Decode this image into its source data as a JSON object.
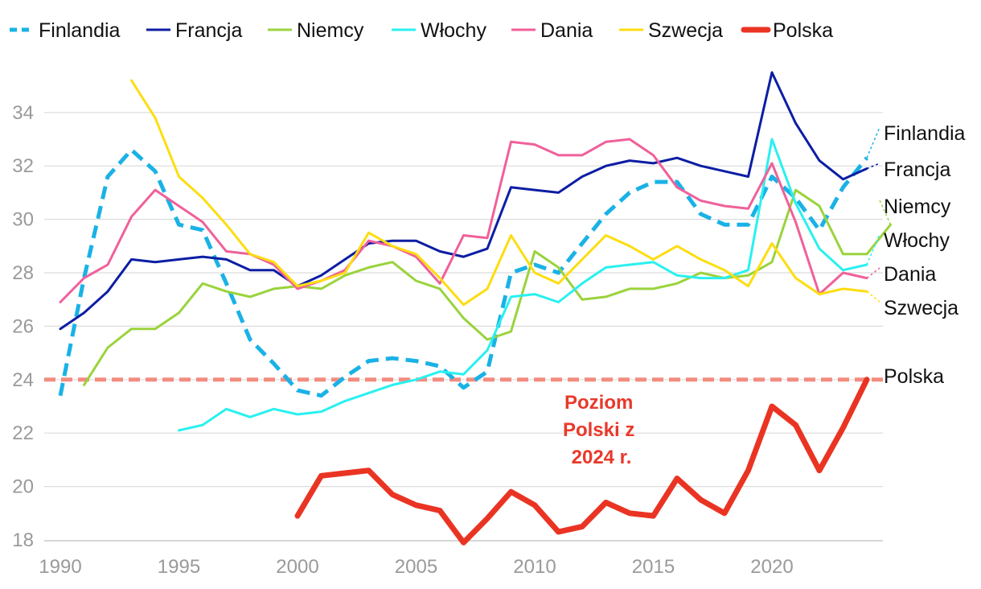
{
  "chart_data": {
    "type": "line",
    "title": "",
    "xlabel": "",
    "ylabel": "",
    "xlim": [
      1990,
      2024
    ],
    "ylim": [
      18,
      35.5
    ],
    "grid": "horizontal",
    "legend_position": "top",
    "x_ticks": [
      1990,
      1995,
      2000,
      2005,
      2010,
      2015,
      2020
    ],
    "y_ticks": [
      18,
      20,
      22,
      24,
      26,
      28,
      30,
      32,
      34
    ],
    "series": [
      {
        "name": "Finlandia",
        "color": "#1ab2e6",
        "dashed": true,
        "width": 5,
        "end_label": "Finlandia",
        "start_year": 1990,
        "values": [
          23.4,
          27.8,
          31.6,
          32.6,
          31.8,
          29.8,
          29.6,
          27.6,
          25.5,
          24.6,
          23.6,
          23.4,
          24.1,
          24.7,
          24.8,
          24.7,
          24.5,
          23.7,
          24.3,
          28.0,
          28.3,
          28.0,
          29.1,
          30.2,
          31.0,
          31.4,
          31.4,
          30.2,
          29.8,
          29.8,
          31.6,
          30.8,
          29.6,
          31.2,
          32.3
        ]
      },
      {
        "name": "Francja",
        "color": "#0d1ea3",
        "dashed": false,
        "width": 3,
        "end_label": "Francja",
        "start_year": 1990,
        "values": [
          25.9,
          26.5,
          27.3,
          28.5,
          28.4,
          28.5,
          28.6,
          28.5,
          28.1,
          28.1,
          27.5,
          27.9,
          28.5,
          29.1,
          29.2,
          29.2,
          28.8,
          28.6,
          28.9,
          31.2,
          31.1,
          31.0,
          31.6,
          32.0,
          32.2,
          32.1,
          32.3,
          32.0,
          31.8,
          31.6,
          35.5,
          33.6,
          32.2,
          31.5,
          31.9
        ]
      },
      {
        "name": "Niemcy",
        "color": "#9ad33c",
        "dashed": false,
        "width": 3,
        "end_label": "Niemcy",
        "start_year": 1991,
        "values": [
          23.8,
          25.2,
          25.9,
          25.9,
          26.5,
          27.6,
          27.3,
          27.1,
          27.4,
          27.5,
          27.4,
          27.9,
          28.2,
          28.4,
          27.7,
          27.4,
          26.3,
          25.5,
          25.8,
          28.8,
          28.2,
          27.0,
          27.1,
          27.4,
          27.4,
          27.6,
          28.0,
          27.8,
          27.9,
          28.4,
          31.1,
          30.5,
          28.7,
          28.7,
          29.8
        ]
      },
      {
        "name": "Włochy",
        "color": "#2af0f0",
        "dashed": false,
        "width": 3,
        "end_label": "Włochy",
        "start_year": 1995,
        "values": [
          22.1,
          22.3,
          22.9,
          22.6,
          22.9,
          22.7,
          22.8,
          23.2,
          23.5,
          23.8,
          24.0,
          24.3,
          24.2,
          25.1,
          27.1,
          27.2,
          26.9,
          27.6,
          28.2,
          28.3,
          28.4,
          27.9,
          27.8,
          27.8,
          28.1,
          33.0,
          30.6,
          28.9,
          28.1,
          28.3
        ]
      },
      {
        "name": "Dania",
        "color": "#f0609a",
        "dashed": false,
        "width": 3,
        "end_label": "Dania",
        "start_year": 1990,
        "values": [
          26.9,
          27.8,
          28.3,
          30.1,
          31.1,
          30.5,
          29.9,
          28.8,
          28.7,
          28.3,
          27.4,
          27.7,
          28.1,
          29.2,
          29.0,
          28.6,
          27.6,
          29.4,
          29.3,
          32.9,
          32.8,
          32.4,
          32.4,
          32.9,
          33.0,
          32.4,
          31.2,
          30.7,
          30.5,
          30.4,
          32.1,
          29.9,
          27.2,
          28.0,
          27.8
        ]
      },
      {
        "name": "Szwecja",
        "color": "#fddd12",
        "dashed": false,
        "width": 3,
        "end_label": "Szwecja",
        "start_year": 1993,
        "values": [
          35.2,
          33.8,
          31.6,
          30.8,
          29.8,
          28.7,
          28.4,
          27.5,
          27.7,
          28.0,
          29.5,
          29.0,
          28.7,
          27.8,
          26.8,
          27.4,
          29.4,
          28.0,
          27.6,
          28.5,
          29.4,
          29.0,
          28.5,
          29.0,
          28.5,
          28.1,
          27.5,
          29.1,
          27.8,
          27.2,
          27.4,
          27.3
        ]
      },
      {
        "name": "Polska",
        "color": "#ea3423",
        "dashed": false,
        "width": 7,
        "end_label": "Polska",
        "start_year": 2000,
        "values": [
          18.9,
          20.4,
          20.5,
          20.6,
          19.7,
          19.3,
          19.1,
          17.9,
          18.8,
          19.8,
          19.3,
          18.3,
          18.5,
          19.4,
          19.0,
          18.9,
          20.3,
          19.5,
          19.0,
          20.6,
          23.0,
          22.3,
          20.6,
          22.2,
          24.0
        ]
      }
    ],
    "reference_line": {
      "value": 24.0,
      "color": "#f38c80",
      "label": "Poziom Polski z 2024 r."
    },
    "annotation_lines": [
      "Poziom",
      "Polski z",
      "2024 r."
    ]
  }
}
